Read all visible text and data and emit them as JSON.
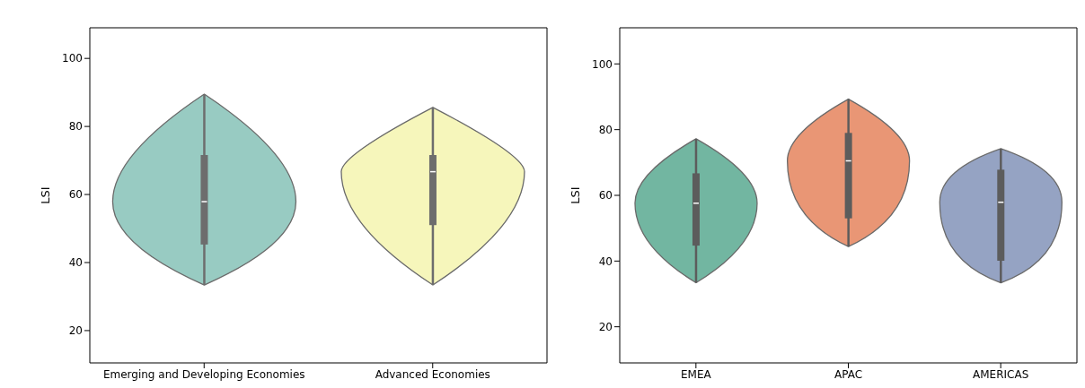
{
  "chart_data": [
    {
      "type": "box",
      "ylabel": "LSI",
      "categories": [
        "Emerging and Developing Economies",
        "Advanced Economies"
      ],
      "colors": [
        "#6d6d6d",
        "#6d6d6d"
      ],
      "ylim": [
        10.5,
        109
      ],
      "yticks": [
        20,
        40,
        60,
        80,
        100
      ],
      "grid": false,
      "boxes": [
        {
          "low": 33.4,
          "q1": 45.3,
          "median": 57.9,
          "q3": 71.6,
          "high": 89.5
        },
        {
          "low": 33.4,
          "q1": 51,
          "median": 66.7,
          "q3": 71.6,
          "high": 85.6
        }
      ]
    },
    {
      "type": "box",
      "ylabel": "LSI",
      "categories": [
        "EMEA",
        "APAC",
        "AMERICAS"
      ],
      "colors": [
        "#5c5c5c",
        "#5c5c5c",
        "#5c5c5c"
      ],
      "ylim": [
        9,
        111
      ],
      "yticks": [
        20,
        40,
        60,
        80,
        100
      ],
      "grid": false,
      "boxes": [
        {
          "low": 33.4,
          "q1": 44.7,
          "median": 57.6,
          "q3": 66.7,
          "high": 77.2
        },
        {
          "low": 44.4,
          "q1": 53,
          "median": 70.5,
          "q3": 79,
          "high": 89.3
        },
        {
          "low": 33.4,
          "q1": 40.1,
          "median": 57.9,
          "q3": 67.8,
          "high": 74.2
        }
      ]
    }
  ]
}
